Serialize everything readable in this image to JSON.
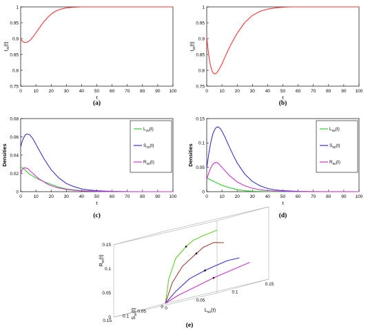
{
  "chart_data": [
    {
      "id": "a",
      "type": "line",
      "label": "(a)",
      "xlabel": "t",
      "ylabel": "I",
      "ylabel_sub": "20",
      "ylabel_suffix": "(t)",
      "xlim": [
        0,
        100
      ],
      "ylim": [
        0.75,
        1
      ],
      "xticks": [
        "0",
        "10",
        "20",
        "30",
        "40",
        "50",
        "60",
        "70",
        "80",
        "90",
        "100"
      ],
      "yticks": [
        "0.75",
        "0.8",
        "0.85",
        "0.9",
        "0.95",
        "1"
      ],
      "series": [
        {
          "color": "#ff3333",
          "x": [
            0,
            2,
            4,
            6,
            8,
            10,
            12,
            15,
            18,
            20,
            22,
            25,
            28,
            30,
            35,
            40,
            45,
            50,
            60,
            70,
            80,
            100
          ],
          "y": [
            0.898,
            0.888,
            0.888,
            0.894,
            0.905,
            0.918,
            0.932,
            0.952,
            0.968,
            0.977,
            0.984,
            0.991,
            0.995,
            0.997,
            0.999,
            1,
            1,
            1,
            1,
            1,
            1,
            1
          ]
        }
      ]
    },
    {
      "id": "b",
      "type": "line",
      "label": "(b)",
      "xlabel": "t",
      "ylabel": "I",
      "ylabel_sub": "60",
      "ylabel_suffix": "(t)",
      "xlim": [
        0,
        100
      ],
      "ylim": [
        0.75,
        1
      ],
      "xticks": [
        "0",
        "10",
        "20",
        "30",
        "40",
        "50",
        "60",
        "70",
        "80",
        "90",
        "100"
      ],
      "yticks": [
        "0.75",
        "0.8",
        "0.85",
        "0.9",
        "0.95",
        "1"
      ],
      "series": [
        {
          "color": "#ff3333",
          "x": [
            0,
            1,
            2,
            3,
            4,
            5,
            6,
            7,
            8,
            10,
            12,
            15,
            18,
            20,
            25,
            30,
            35,
            40,
            45,
            50,
            55,
            60,
            70,
            80,
            100
          ],
          "y": [
            0.905,
            0.86,
            0.826,
            0.805,
            0.793,
            0.789,
            0.79,
            0.795,
            0.802,
            0.82,
            0.842,
            0.873,
            0.9,
            0.917,
            0.951,
            0.973,
            0.986,
            0.993,
            0.997,
            0.999,
            1,
            1,
            1,
            1,
            1
          ]
        }
      ]
    },
    {
      "id": "c",
      "type": "line",
      "label": "(c)",
      "xlabel": "t",
      "ylabel": "Densities",
      "xlim": [
        0,
        100
      ],
      "ylim": [
        0,
        0.08
      ],
      "xticks": [
        "0",
        "10",
        "20",
        "30",
        "40",
        "50",
        "60",
        "70",
        "80",
        "90",
        "100"
      ],
      "yticks": [
        "0",
        "0.02",
        "0.04",
        "0.06",
        "0.08"
      ],
      "legend": [
        {
          "name": "L",
          "sub": "20",
          "suffix": "(t)",
          "color": "#33cc33"
        },
        {
          "name": "S",
          "sub": "20",
          "suffix": "(t)",
          "color": "#3333cc"
        },
        {
          "name": "R",
          "sub": "20",
          "suffix": "(t)",
          "color": "#cc33cc"
        }
      ],
      "series": [
        {
          "name": "L20(t)",
          "color": "#33cc33",
          "x": [
            0,
            2,
            4,
            6,
            8,
            10,
            15,
            20,
            25,
            30,
            35,
            40,
            50,
            60,
            70,
            100
          ],
          "y": [
            0.027,
            0.025,
            0.022,
            0.019,
            0.017,
            0.015,
            0.011,
            0.008,
            0.005,
            0.003,
            0.002,
            0.001,
            0.0004,
            0.0001,
            0,
            0
          ]
        },
        {
          "name": "S20(t)",
          "color": "#3333cc",
          "x": [
            0,
            1,
            2,
            3,
            4,
            5,
            6,
            8,
            10,
            12,
            15,
            18,
            20,
            25,
            30,
            35,
            40,
            45,
            50,
            60,
            70,
            80,
            100
          ],
          "y": [
            0.049,
            0.055,
            0.059,
            0.062,
            0.063,
            0.063,
            0.062,
            0.058,
            0.052,
            0.046,
            0.037,
            0.029,
            0.024,
            0.015,
            0.009,
            0.0055,
            0.003,
            0.0018,
            0.001,
            0.0003,
            0.0001,
            0,
            0
          ]
        },
        {
          "name": "R20(t)",
          "color": "#cc33cc",
          "x": [
            0,
            1,
            2,
            3,
            4,
            5,
            6,
            8,
            10,
            12,
            15,
            18,
            20,
            25,
            30,
            35,
            40,
            50,
            60,
            70,
            100
          ],
          "y": [
            0.02,
            0.024,
            0.026,
            0.026,
            0.0255,
            0.025,
            0.023,
            0.02,
            0.017,
            0.014,
            0.011,
            0.008,
            0.0065,
            0.004,
            0.0025,
            0.0015,
            0.0009,
            0.0003,
            0.0001,
            0,
            0
          ]
        }
      ]
    },
    {
      "id": "d",
      "type": "line",
      "label": "(d)",
      "xlabel": "t",
      "ylabel": "Densities",
      "xlim": [
        0,
        100
      ],
      "ylim": [
        0,
        0.15
      ],
      "xticks": [
        "0",
        "10",
        "20",
        "30",
        "40",
        "50",
        "60",
        "70",
        "80",
        "90",
        "100"
      ],
      "yticks": [
        "0",
        "0.05",
        "0.1",
        "0.15"
      ],
      "legend": [
        {
          "name": "L",
          "sub": "60",
          "suffix": "(t)",
          "color": "#33cc33"
        },
        {
          "name": "S",
          "sub": "60",
          "suffix": "(t)",
          "color": "#3333cc"
        },
        {
          "name": "R",
          "sub": "60",
          "suffix": "(t)",
          "color": "#cc33cc"
        }
      ],
      "series": [
        {
          "name": "L60(t)",
          "color": "#33cc33",
          "x": [
            0,
            2,
            4,
            6,
            8,
            10,
            12,
            15,
            18,
            20,
            25,
            30,
            35,
            40,
            50,
            60,
            100
          ],
          "y": [
            0.028,
            0.025,
            0.022,
            0.019,
            0.016,
            0.013,
            0.011,
            0.008,
            0.006,
            0.004,
            0.002,
            0.001,
            0.0005,
            0.0002,
            0,
            0,
            0
          ]
        },
        {
          "name": "S60(t)",
          "color": "#3333cc",
          "x": [
            0,
            1,
            2,
            3,
            4,
            5,
            6,
            7,
            8,
            9,
            10,
            12,
            15,
            18,
            20,
            25,
            30,
            35,
            40,
            45,
            50,
            60,
            70,
            80,
            100
          ],
          "y": [
            0.048,
            0.07,
            0.09,
            0.106,
            0.118,
            0.126,
            0.131,
            0.133,
            0.132,
            0.129,
            0.124,
            0.112,
            0.091,
            0.071,
            0.059,
            0.036,
            0.021,
            0.012,
            0.0065,
            0.0035,
            0.002,
            0.0006,
            0.0002,
            0,
            0
          ]
        },
        {
          "name": "R60(t)",
          "color": "#cc33cc",
          "x": [
            0,
            1,
            2,
            3,
            4,
            5,
            6,
            7,
            8,
            10,
            12,
            15,
            18,
            20,
            25,
            30,
            35,
            40,
            50,
            60,
            100
          ],
          "y": [
            0.025,
            0.035,
            0.044,
            0.051,
            0.056,
            0.059,
            0.06,
            0.059,
            0.057,
            0.05,
            0.043,
            0.033,
            0.025,
            0.02,
            0.012,
            0.007,
            0.004,
            0.002,
            0.0006,
            0.0002,
            0
          ]
        }
      ]
    },
    {
      "id": "e",
      "type": "line3d",
      "label": "(e)",
      "xlabel": "L",
      "xlabel_sub": "50",
      "xlabel_suffix": "(t)",
      "ylabel": "S",
      "ylabel_sub": "50",
      "ylabel_suffix": "(t)",
      "zlabel": "R",
      "zlabel_sub": "50",
      "zlabel_suffix": "(t)",
      "xticks": [
        "0",
        "0.05",
        "0.1",
        "0.15"
      ],
      "yticks": [
        "0",
        "0.05",
        "0.1",
        "0.15"
      ],
      "zticks": [
        "0",
        "0.05",
        "0.1",
        "0.15"
      ],
      "series": [
        {
          "color": "#66cc33",
          "x": [
            0,
            0.02,
            0.05,
            0.08,
            0.1,
            0.12,
            0.14
          ],
          "y": [
            0,
            0.03,
            0.07,
            0.1,
            0.12,
            0.13,
            0.13
          ],
          "z": [
            0,
            0.05,
            0.09,
            0.11,
            0.12,
            0.125,
            0.13
          ]
        },
        {
          "color": "#994433",
          "x": [
            0,
            0.02,
            0.05,
            0.08,
            0.1,
            0.12,
            0.14
          ],
          "y": [
            0,
            0.02,
            0.05,
            0.07,
            0.09,
            0.1,
            0.11
          ],
          "z": [
            0,
            0.04,
            0.07,
            0.09,
            0.1,
            0.105,
            0.1
          ]
        },
        {
          "color": "#3333cc",
          "x": [
            0,
            0.02,
            0.05,
            0.08,
            0.1,
            0.12,
            0.14
          ],
          "y": [
            0,
            0.01,
            0.03,
            0.045,
            0.055,
            0.06,
            0.065
          ],
          "z": [
            0,
            0.02,
            0.04,
            0.05,
            0.055,
            0.06,
            0.06
          ]
        },
        {
          "color": "#cc33cc",
          "x": [
            0,
            0.02,
            0.05,
            0.08,
            0.1,
            0.12,
            0.14
          ],
          "y": [
            0,
            0.005,
            0.012,
            0.02,
            0.025,
            0.03,
            0.035
          ],
          "z": [
            0,
            0.01,
            0.02,
            0.03,
            0.035,
            0.04,
            0.045
          ]
        }
      ]
    }
  ]
}
